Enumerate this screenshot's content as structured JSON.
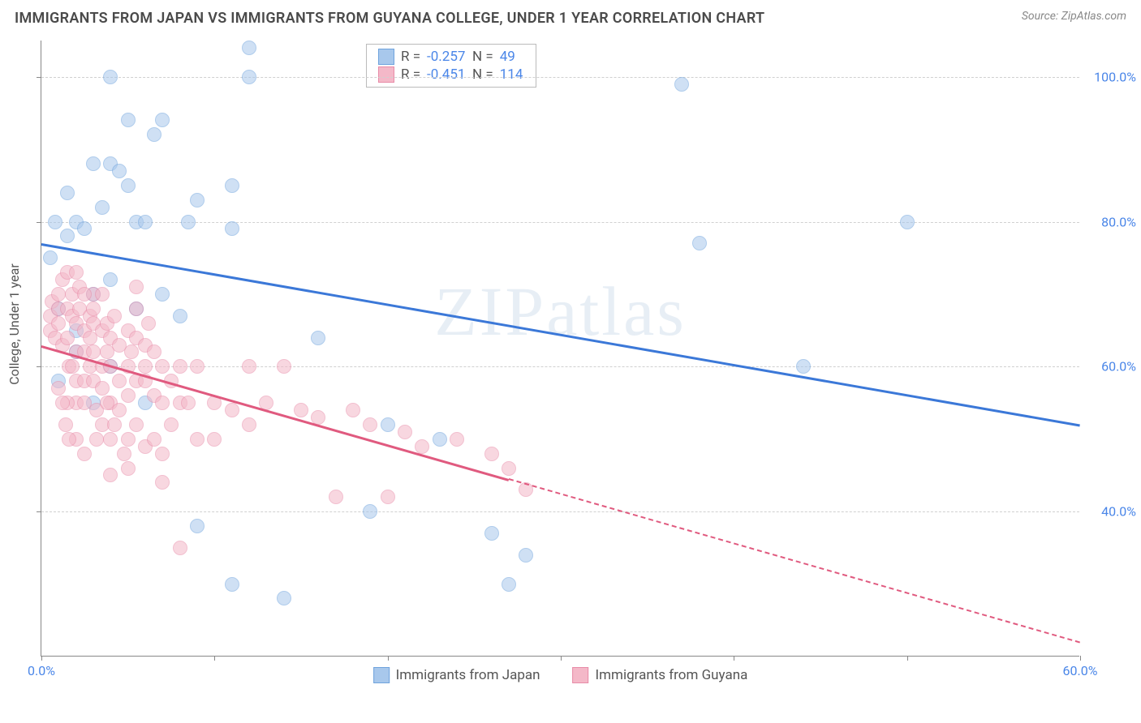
{
  "title": "IMMIGRANTS FROM JAPAN VS IMMIGRANTS FROM GUYANA COLLEGE, UNDER 1 YEAR CORRELATION CHART",
  "source": "Source: ZipAtlas.com",
  "ylabel": "College, Under 1 year",
  "watermark": "ZIPatlas",
  "chart": {
    "type": "scatter",
    "xlim": [
      0,
      60
    ],
    "ylim": [
      20,
      105
    ],
    "xticks": [
      0,
      10,
      20,
      30,
      40,
      50,
      60
    ],
    "xtick_labels": {
      "0": "0.0%",
      "60": "60.0%"
    },
    "yticks": [
      40,
      60,
      80,
      100
    ],
    "ytick_labels": {
      "40": "40.0%",
      "60": "60.0%",
      "80": "80.0%",
      "100": "100.0%"
    },
    "grid_color": "#d0d0d0",
    "background_color": "#ffffff",
    "axis_color": "#888888",
    "tick_label_color": "#4a86e8",
    "marker_radius": 9,
    "marker_opacity": 0.55,
    "marker_stroke_opacity": 0.9
  },
  "series": {
    "japan": {
      "label": "Immigrants from Japan",
      "color_fill": "#a8c8ec",
      "color_stroke": "#6fa3dd",
      "r": "-0.257",
      "n": "49",
      "trend": {
        "x1": 0,
        "y1": 77,
        "x2": 60,
        "y2": 52,
        "solid_until_x": 60,
        "color": "#3b78d8"
      },
      "points": [
        [
          1.5,
          78
        ],
        [
          2,
          80
        ],
        [
          1,
          68
        ],
        [
          0.5,
          75
        ],
        [
          2.5,
          79
        ],
        [
          3,
          88
        ],
        [
          4,
          88
        ],
        [
          4.5,
          87
        ],
        [
          5,
          85
        ],
        [
          3.5,
          82
        ],
        [
          5.5,
          80
        ],
        [
          6,
          80
        ],
        [
          4,
          72
        ],
        [
          2,
          65
        ],
        [
          1,
          58
        ],
        [
          6.5,
          92
        ],
        [
          7,
          94
        ],
        [
          8.5,
          80
        ],
        [
          9,
          83
        ],
        [
          11,
          85
        ],
        [
          11,
          79
        ],
        [
          12,
          104
        ],
        [
          8,
          67
        ],
        [
          6,
          55
        ],
        [
          9,
          38
        ],
        [
          11,
          30
        ],
        [
          14,
          28
        ],
        [
          20,
          52
        ],
        [
          19,
          40
        ],
        [
          16,
          64
        ],
        [
          23,
          50
        ],
        [
          26,
          37
        ],
        [
          27,
          30
        ],
        [
          38,
          77
        ],
        [
          37,
          99
        ],
        [
          44,
          60
        ],
        [
          50,
          80
        ],
        [
          12,
          100
        ],
        [
          4,
          100
        ],
        [
          5,
          94
        ],
        [
          3,
          70
        ],
        [
          2,
          62
        ],
        [
          4,
          60
        ],
        [
          5.5,
          68
        ],
        [
          3,
          55
        ],
        [
          7,
          70
        ],
        [
          1.5,
          84
        ],
        [
          0.8,
          80
        ],
        [
          28,
          34
        ]
      ]
    },
    "guyana": {
      "label": "Immigrants from Guyana",
      "color_fill": "#f4b8c8",
      "color_stroke": "#e88ca8",
      "r": "-0.451",
      "n": "114",
      "trend": {
        "x1": 0,
        "y1": 63,
        "x2": 60,
        "y2": 22,
        "solid_until_x": 27,
        "color": "#e05a7f"
      },
      "points": [
        [
          0.5,
          67
        ],
        [
          0.5,
          65
        ],
        [
          0.6,
          69
        ],
        [
          0.8,
          64
        ],
        [
          1,
          68
        ],
        [
          1,
          66
        ],
        [
          1,
          70
        ],
        [
          1.2,
          63
        ],
        [
          1.2,
          72
        ],
        [
          1.5,
          64
        ],
        [
          1.5,
          68
        ],
        [
          1.5,
          73
        ],
        [
          1.6,
          60
        ],
        [
          1.8,
          67
        ],
        [
          1.8,
          70
        ],
        [
          2,
          66
        ],
        [
          2,
          62
        ],
        [
          2,
          58
        ],
        [
          2,
          55
        ],
        [
          2.2,
          68
        ],
        [
          2.2,
          71
        ],
        [
          2.5,
          65
        ],
        [
          2.5,
          62
        ],
        [
          2.5,
          58
        ],
        [
          2.5,
          55
        ],
        [
          2.8,
          67
        ],
        [
          2.8,
          60
        ],
        [
          3,
          66
        ],
        [
          3,
          62
        ],
        [
          3,
          58
        ],
        [
          3,
          70
        ],
        [
          3.2,
          54
        ],
        [
          3.2,
          50
        ],
        [
          3.5,
          65
        ],
        [
          3.5,
          60
        ],
        [
          3.5,
          57
        ],
        [
          3.5,
          52
        ],
        [
          3.8,
          66
        ],
        [
          3.8,
          62
        ],
        [
          4,
          64
        ],
        [
          4,
          60
        ],
        [
          4,
          55
        ],
        [
          4,
          50
        ],
        [
          4,
          45
        ],
        [
          4.2,
          67
        ],
        [
          4.5,
          63
        ],
        [
          4.5,
          58
        ],
        [
          4.5,
          54
        ],
        [
          5,
          65
        ],
        [
          5,
          60
        ],
        [
          5,
          56
        ],
        [
          5,
          50
        ],
        [
          5,
          46
        ],
        [
          5.5,
          64
        ],
        [
          5.5,
          58
        ],
        [
          5.5,
          52
        ],
        [
          5.5,
          68
        ],
        [
          5.5,
          71
        ],
        [
          6,
          63
        ],
        [
          6,
          58
        ],
        [
          6,
          60
        ],
        [
          6,
          49
        ],
        [
          6.5,
          62
        ],
        [
          6.5,
          56
        ],
        [
          6.5,
          50
        ],
        [
          7,
          60
        ],
        [
          7,
          55
        ],
        [
          7,
          48
        ],
        [
          7,
          44
        ],
        [
          7.5,
          58
        ],
        [
          7.5,
          52
        ],
        [
          8,
          60
        ],
        [
          8,
          55
        ],
        [
          8,
          35
        ],
        [
          8.5,
          55
        ],
        [
          9,
          50
        ],
        [
          9,
          60
        ],
        [
          10,
          50
        ],
        [
          10,
          55
        ],
        [
          11,
          54
        ],
        [
          12,
          52
        ],
        [
          12,
          60
        ],
        [
          13,
          55
        ],
        [
          14,
          60
        ],
        [
          15,
          54
        ],
        [
          16,
          53
        ],
        [
          17,
          42
        ],
        [
          18,
          54
        ],
        [
          19,
          52
        ],
        [
          20,
          42
        ],
        [
          21,
          51
        ],
        [
          22,
          49
        ],
        [
          24,
          50
        ],
        [
          26,
          48
        ],
        [
          27,
          46
        ],
        [
          28,
          43
        ],
        [
          2,
          73
        ],
        [
          2.5,
          70
        ],
        [
          3,
          68
        ],
        [
          3.5,
          70
        ],
        [
          1,
          57
        ],
        [
          1.5,
          55
        ],
        [
          2,
          50
        ],
        [
          2.5,
          48
        ],
        [
          1.8,
          60
        ],
        [
          2.8,
          64
        ],
        [
          3.8,
          55
        ],
        [
          4.2,
          52
        ],
        [
          4.8,
          48
        ],
        [
          5.2,
          62
        ],
        [
          6.2,
          66
        ],
        [
          1.2,
          55
        ],
        [
          1.4,
          52
        ],
        [
          1.6,
          50
        ]
      ]
    }
  },
  "stats_labels": {
    "r": "R =",
    "n": "N ="
  },
  "legend_order": [
    "japan",
    "guyana"
  ]
}
